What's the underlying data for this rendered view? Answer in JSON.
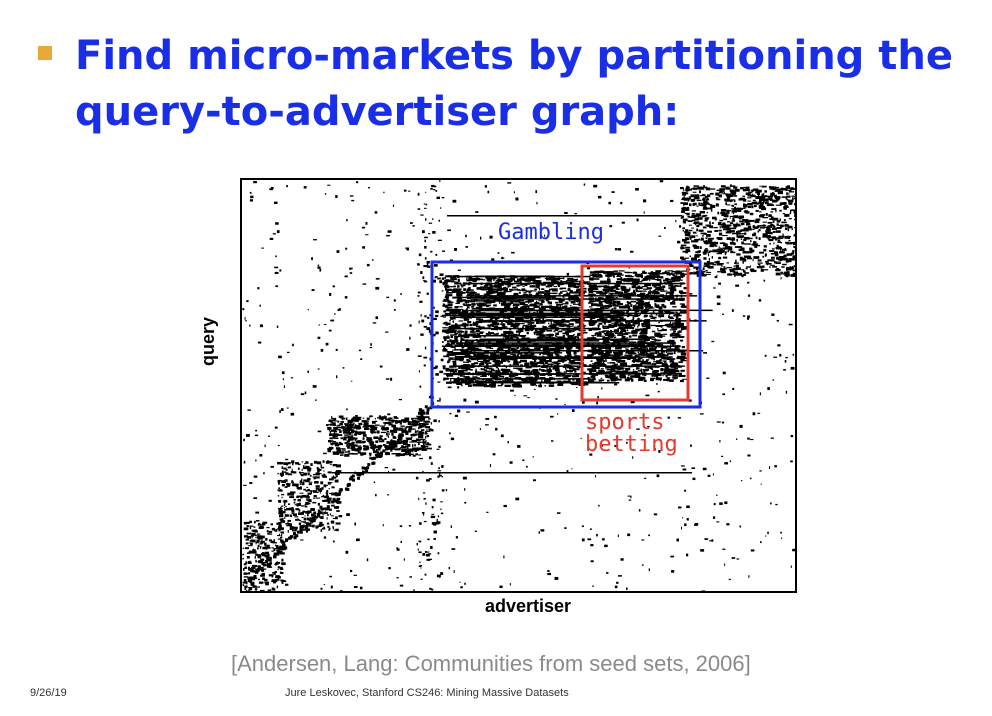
{
  "slide": {
    "title": "Find micro-markets by partitioning the query-to-advertiser graph:",
    "citation": "[Andersen, Lang: Communities from seed sets, 2006]",
    "date": "9/26/19",
    "footer": "Jure Leskovec, Stanford CS246: Mining Massive Datasets"
  },
  "figure": {
    "xlabel": "advertiser",
    "ylabel": "query",
    "annotations": [
      {
        "text": "Gambling",
        "color": "#1a2ee6"
      },
      {
        "text": "sports\nbetting",
        "color": "#e53a2e"
      }
    ]
  },
  "colors": {
    "title": "#1a2ee6",
    "bullet": "#e9a93a",
    "gambling_box": "#1a2ee6",
    "sports_box": "#e53a2e"
  }
}
